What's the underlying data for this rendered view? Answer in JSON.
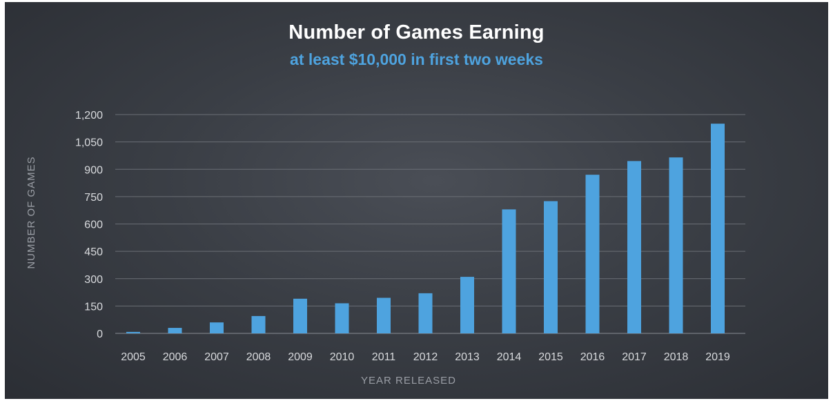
{
  "chart_data": {
    "type": "bar",
    "title": "Number of Games Earning",
    "subtitle": "at least $10,000 in first two weeks",
    "xlabel": "YEAR RELEASED",
    "ylabel": "NUMBER OF GAMES",
    "categories": [
      "2005",
      "2006",
      "2007",
      "2008",
      "2009",
      "2010",
      "2011",
      "2012",
      "2013",
      "2014",
      "2015",
      "2016",
      "2017",
      "2018",
      "2019"
    ],
    "values": [
      8,
      30,
      60,
      95,
      190,
      165,
      195,
      220,
      310,
      680,
      725,
      870,
      945,
      965,
      1150
    ],
    "ylim": [
      0,
      1200
    ],
    "yticks": [
      "0",
      "150",
      "300",
      "450",
      "600",
      "750",
      "900",
      "1,050",
      "1,200"
    ],
    "ytick_values": [
      0,
      150,
      300,
      450,
      600,
      750,
      900,
      1050,
      1200
    ],
    "grid": true,
    "bar_color": "#4ea3df",
    "title_color": "#ffffff",
    "subtitle_color": "#4ea3df",
    "background_color": "#3a3e45"
  }
}
